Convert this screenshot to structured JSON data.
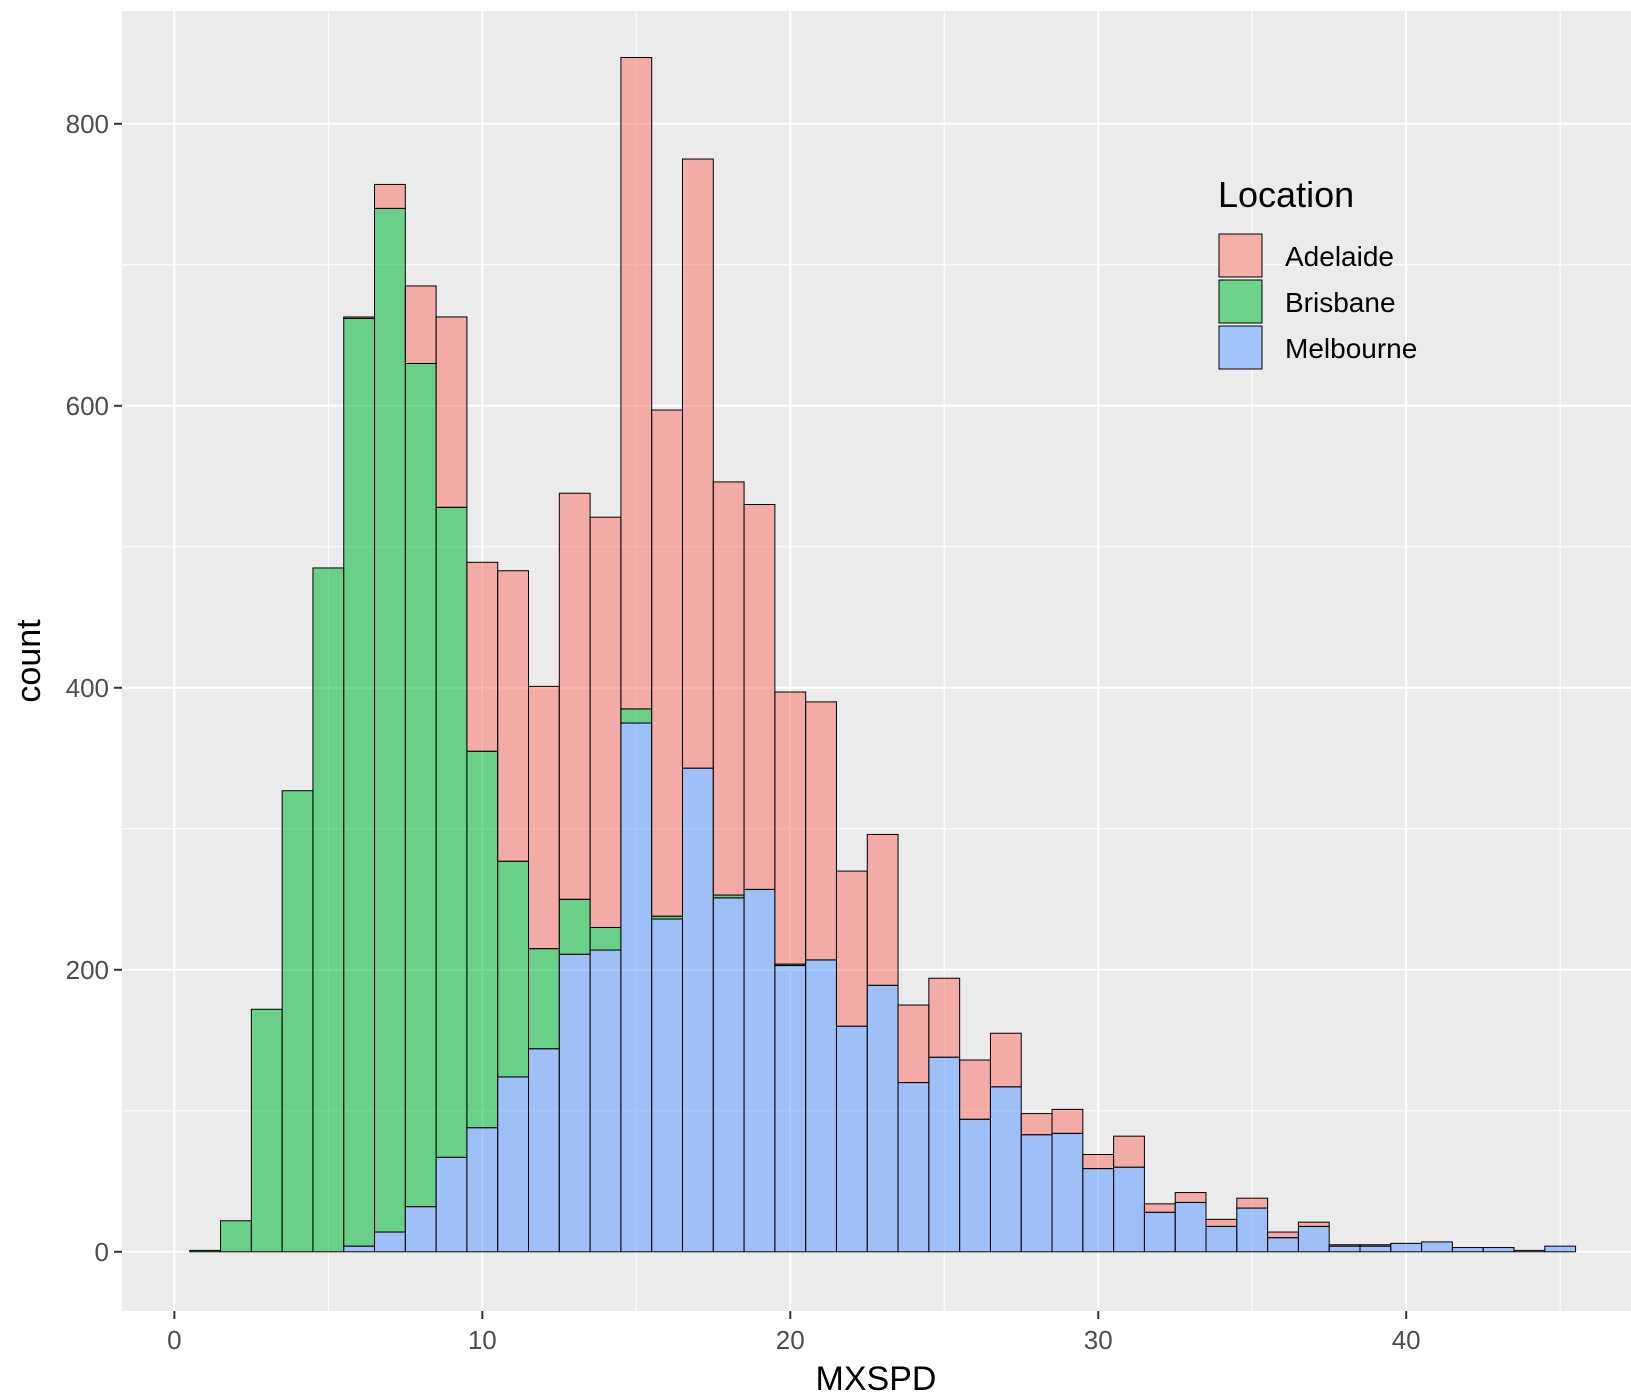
{
  "chart_data": {
    "type": "bar",
    "stacked": true,
    "title": "",
    "xlabel": "MXSPD",
    "ylabel": "count",
    "xlim": [
      -1.7,
      47.3
    ],
    "ylim": [
      -42,
      880
    ],
    "xticks": [
      0,
      10,
      20,
      30,
      40
    ],
    "yticks": [
      0,
      200,
      400,
      600,
      800
    ],
    "bin_width": 1,
    "bin_centers": [
      1,
      2,
      3,
      4,
      5,
      6,
      7,
      8,
      9,
      10,
      11,
      12,
      13,
      14,
      15,
      16,
      17,
      18,
      19,
      20,
      21,
      22,
      23,
      24,
      25,
      26,
      27,
      28,
      29,
      30,
      31,
      32,
      33,
      34,
      35,
      36,
      37,
      38,
      39,
      40,
      41,
      42,
      43,
      44,
      45
    ],
    "legend": {
      "title": "Location",
      "position": "top-right"
    },
    "series": [
      {
        "name": "Adelaide",
        "color": "#F8766D",
        "values": [
          0,
          0,
          0,
          0,
          0,
          1,
          17,
          55,
          135,
          134,
          206,
          186,
          288,
          291,
          462,
          359,
          432,
          293,
          273,
          193,
          183,
          110,
          107,
          55,
          56,
          42,
          38,
          15,
          17,
          10,
          22,
          6,
          7,
          5,
          7,
          4,
          3,
          1,
          1,
          0,
          0,
          0,
          0,
          0,
          0
        ]
      },
      {
        "name": "Brisbane",
        "color": "#00BA38",
        "values": [
          1,
          22,
          172,
          327,
          485,
          658,
          726,
          598,
          461,
          267,
          153,
          71,
          39,
          16,
          10,
          2,
          0,
          2,
          0,
          1,
          0,
          0,
          0,
          0,
          0,
          0,
          0,
          0,
          0,
          0,
          0,
          0,
          0,
          0,
          0,
          0,
          0,
          0,
          0,
          0,
          0,
          0,
          0,
          0,
          0
        ]
      },
      {
        "name": "Melbourne",
        "color": "#619CFF",
        "values": [
          0,
          0,
          0,
          0,
          0,
          4,
          14,
          32,
          67,
          88,
          124,
          144,
          211,
          214,
          375,
          236,
          343,
          251,
          257,
          203,
          207,
          160,
          189,
          120,
          138,
          94,
          117,
          83,
          84,
          59,
          60,
          28,
          35,
          18,
          31,
          10,
          18,
          4,
          4,
          6,
          7,
          3,
          3,
          1,
          4
        ]
      }
    ]
  }
}
